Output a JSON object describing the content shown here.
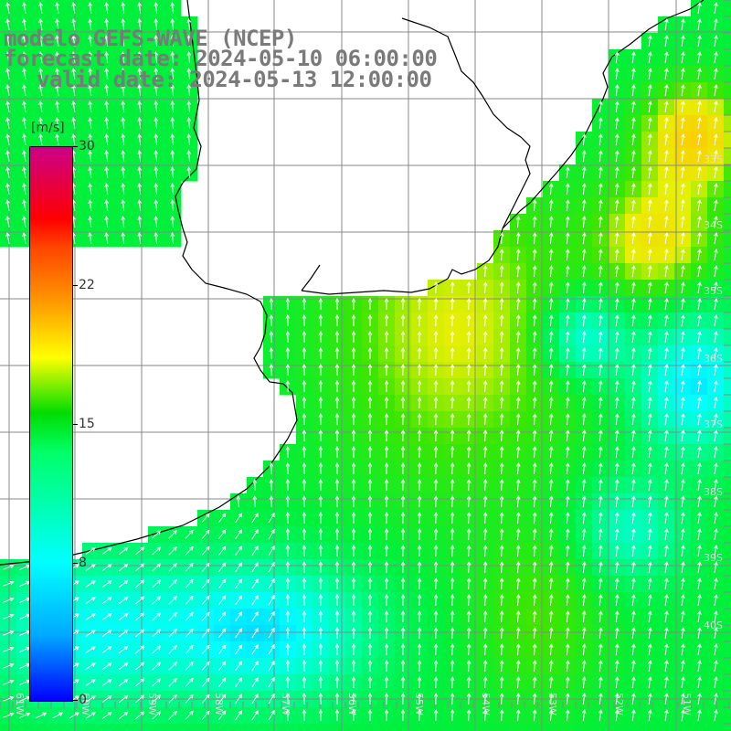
{
  "title": {
    "line1": "modelo GEFS-WAVE (NCEP)",
    "line2": "forecast date: 2024-05-10 06:00:00",
    "line3": "valid date: 2024-05-13 12:00:00"
  },
  "colorbar": {
    "unit": "[m/s]",
    "min": 0,
    "max": 30,
    "ticks": [
      "30",
      "22",
      "15",
      "8",
      "0"
    ]
  },
  "lat_labels": [
    "33S",
    "34S",
    "35S",
    "36S",
    "37S",
    "38S",
    "39S",
    "40S"
  ],
  "lon_labels": [
    "61W",
    "60W",
    "59W",
    "58W",
    "57W",
    "56W",
    "55W",
    "54W",
    "53W",
    "52W",
    "51W"
  ],
  "colors": {
    "land": "#ffffff",
    "grid": "#808080",
    "coast": "#000000",
    "arrow": "#ffffff"
  }
}
